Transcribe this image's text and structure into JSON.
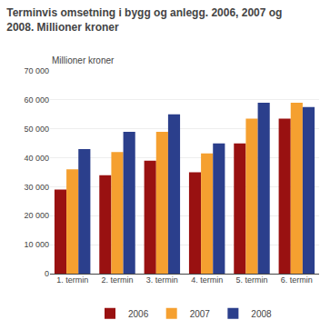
{
  "chart_data": {
    "type": "bar",
    "title": "Terminvis omsetning i bygg og anlegg. 2006, 2007 og\n2008. Millioner kroner",
    "ylabel": "Millioner kroner",
    "categories": [
      "1. termin",
      "2. termin",
      "3. termin",
      "4. termin",
      "5. termin",
      "6. termin"
    ],
    "series": [
      {
        "name": "2006",
        "color": "#991111",
        "values": [
          29000,
          34000,
          39000,
          35000,
          45000,
          53500
        ]
      },
      {
        "name": "2007",
        "color": "#F5A030",
        "values": [
          36000,
          42000,
          49000,
          41500,
          53500,
          59000
        ]
      },
      {
        "name": "2008",
        "color": "#2B3F8C",
        "values": [
          43000,
          49000,
          55000,
          45000,
          59000,
          57500
        ]
      }
    ],
    "ylim": [
      0,
      70000
    ],
    "yticks": [
      0,
      {
        "value": 10000,
        "label": "10 000"
      },
      {
        "value": 20000,
        "label": "20 000"
      },
      {
        "value": 30000,
        "label": "30 000"
      },
      {
        "value": 40000,
        "label": "40 000"
      },
      {
        "value": 50000,
        "label": "50 000"
      },
      {
        "value": 60000,
        "label": "60 000"
      },
      {
        "value": 70000,
        "label": "70 000"
      }
    ],
    "grid": true,
    "legend": "bottom"
  }
}
